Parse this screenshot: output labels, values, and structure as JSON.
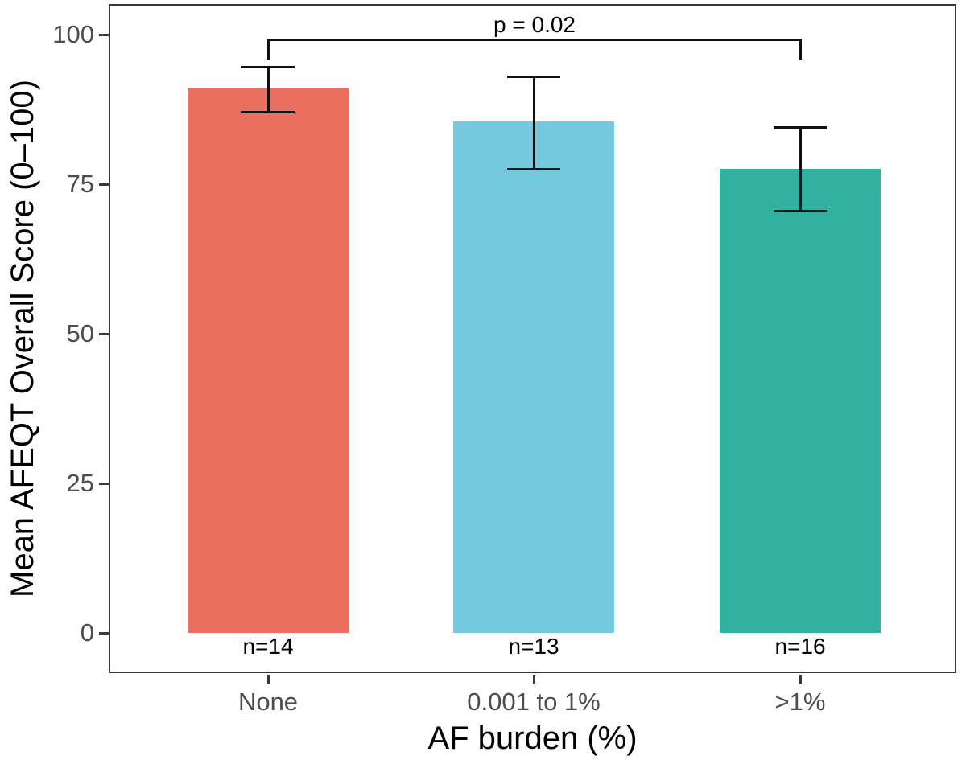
{
  "chart_data": {
    "type": "bar",
    "title": "",
    "xlabel": "AF burden (%)",
    "ylabel": "Mean AFEQT Overall Score (0–100)",
    "categories": [
      "None",
      "0.001 to 1%",
      ">1%"
    ],
    "values": [
      91,
      85.5,
      77.5
    ],
    "error_bars": {
      "upper": [
        94.5,
        93,
        84.5
      ],
      "lower": [
        87,
        77.5,
        70.5
      ]
    },
    "n_labels": [
      "n=14",
      "n=13",
      "n=16"
    ],
    "bar_colors": [
      "#EA6F5F",
      "#74C9DE",
      "#32B1A0"
    ],
    "yticks": [
      0,
      25,
      50,
      75,
      100
    ],
    "ylim": [
      0,
      100
    ],
    "grid": false,
    "legend": false,
    "significance": {
      "label": "p = 0.02",
      "from": "None",
      "to": ">1%",
      "from_index": 0,
      "to_index": 2
    }
  }
}
